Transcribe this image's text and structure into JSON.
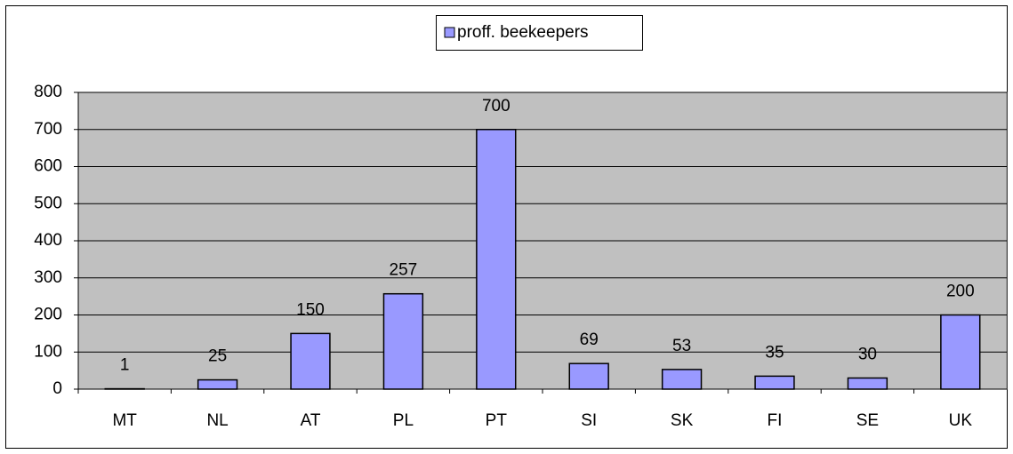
{
  "chart_data": {
    "type": "bar",
    "categories": [
      "MT",
      "NL",
      "AT",
      "PL",
      "PT",
      "SI",
      "SK",
      "FI",
      "SE",
      "UK"
    ],
    "series": [
      {
        "name": "proff. beekeepers",
        "color": "#9999ff",
        "values": [
          1,
          25,
          150,
          257,
          700,
          69,
          53,
          35,
          30,
          200
        ]
      }
    ],
    "ylim": [
      0,
      800
    ],
    "yticks": [
      0,
      100,
      200,
      300,
      400,
      500,
      600,
      700,
      800
    ],
    "grid": true,
    "plot_background": "#c0c0c0",
    "legend": "top"
  }
}
